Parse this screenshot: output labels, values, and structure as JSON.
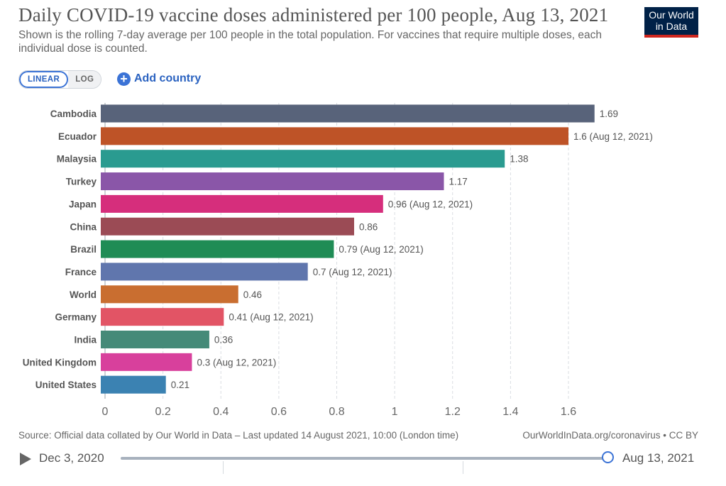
{
  "title": "Daily COVID-19 vaccine doses administered per 100 people, Aug 13, 2021",
  "subtitle": "Shown is the rolling 7-day average per 100 people in the total population. For vaccines that require multiple doses, each individual dose is counted.",
  "logo": {
    "line1": "Our World",
    "line2": "in Data"
  },
  "controls": {
    "linear_label": "LINEAR",
    "log_label": "LOG",
    "add_country_label": "Add country",
    "add_icon": "plus-circle-icon"
  },
  "chart_data": {
    "type": "bar",
    "orientation": "horizontal",
    "title": "Daily COVID-19 vaccine doses administered per 100 people, Aug 13, 2021",
    "categories": [
      "Cambodia",
      "Ecuador",
      "Malaysia",
      "Turkey",
      "Japan",
      "China",
      "Brazil",
      "France",
      "World",
      "Germany",
      "India",
      "United Kingdom",
      "United States"
    ],
    "values": [
      1.69,
      1.6,
      1.38,
      1.17,
      0.96,
      0.86,
      0.79,
      0.7,
      0.46,
      0.41,
      0.36,
      0.3,
      0.21
    ],
    "value_labels": [
      "1.69",
      "1.6 (Aug 12, 2021)",
      "1.38",
      "1.17",
      "0.96 (Aug 12, 2021)",
      "0.86",
      "0.79 (Aug 12, 2021)",
      "0.7 (Aug 12, 2021)",
      "0.46",
      "0.41 (Aug 12, 2021)",
      "0.36",
      "0.3 (Aug 12, 2021)",
      "0.21"
    ],
    "colors": [
      "#58637a",
      "#be5327",
      "#2a9b90",
      "#8a56a8",
      "#d62e7c",
      "#9b4b55",
      "#1f8c55",
      "#6076ad",
      "#c96e30",
      "#e25465",
      "#458a78",
      "#d8409c",
      "#3b82b2"
    ],
    "x_ticks": [
      0,
      0.2,
      0.4,
      0.6,
      0.8,
      1,
      1.2,
      1.4,
      1.6
    ],
    "x_tick_labels": [
      "0",
      "0.2",
      "0.4",
      "0.6",
      "0.8",
      "1",
      "1.2",
      "1.4",
      "1.6"
    ],
    "xlim": [
      0,
      1.75
    ],
    "grid": "vertical dashed",
    "xlabel": "",
    "ylabel": ""
  },
  "footer": {
    "source": "Source: Official data collated by Our World in Data – Last updated 14 August 2021, 10:00 (London time)",
    "link": "OurWorldInData.org/coronavirus • CC BY"
  },
  "timeline": {
    "start_date": "Dec 3, 2020",
    "end_date": "Aug 13, 2021",
    "play_icon": "play-icon",
    "position": 1.0
  }
}
